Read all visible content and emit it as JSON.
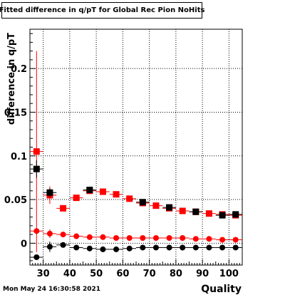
{
  "timestamp": "Mon May 24 16:30:58 2021",
  "chart_data": {
    "type": "scatter",
    "title": "Fitted difference in q/pT for Global Rec Pion NoHits",
    "xlabel": "Quality",
    "ylabel": "difference in q/pT",
    "xlim": [
      25,
      105
    ],
    "ylim": [
      -0.025,
      0.245
    ],
    "x_ticks": [
      30,
      40,
      50,
      60,
      70,
      80,
      90,
      100
    ],
    "x_tick_labels": [
      "30",
      "40",
      "50",
      "60",
      "70",
      "80",
      "90",
      "100"
    ],
    "y_ticks": [
      0,
      0.05,
      0.1,
      0.15,
      0.2
    ],
    "y_tick_labels": [
      "0",
      "0.05",
      "0.1",
      "0.15",
      "0.2"
    ],
    "grid": true,
    "x_bins": [
      27.5,
      32.5,
      37.5,
      42.5,
      47.5,
      52.5,
      57.5,
      62.5,
      67.5,
      72.5,
      77.5,
      82.5,
      87.5,
      92.5,
      97.5,
      102.5
    ],
    "x_halfwidth": 2.5,
    "series": [
      {
        "marker": "square",
        "color": "#ff0000",
        "values": [
          0.105,
          0.055,
          0.04,
          0.052,
          0.06,
          0.059,
          0.056,
          0.051,
          0.046,
          0.043,
          0.04,
          0.037,
          0.036,
          0.034,
          0.033,
          0.032
        ],
        "errors": [
          0.115,
          0.01,
          0.002,
          0.002,
          0.002,
          0.002,
          0.002,
          0.002,
          0.002,
          0.002,
          0.002,
          0.002,
          0.002,
          0.002,
          0.002,
          0.002
        ]
      },
      {
        "marker": "square",
        "color": "#000000",
        "values": [
          0.085,
          0.058,
          null,
          null,
          0.061,
          null,
          null,
          null,
          0.047,
          null,
          0.041,
          null,
          0.036,
          null,
          0.032,
          0.033
        ],
        "errors": [
          0.01,
          0.005,
          0,
          0,
          0.002,
          0,
          0,
          0,
          0.002,
          0,
          0.002,
          0,
          0.002,
          0,
          0.002,
          0.002
        ]
      },
      {
        "marker": "circle",
        "color": "#ff0000",
        "values": [
          0.014,
          0.011,
          0.01,
          0.008,
          0.007,
          0.007,
          0.006,
          0.006,
          0.006,
          0.006,
          0.006,
          0.006,
          0.005,
          0.005,
          0.004,
          0.004
        ],
        "errors": [
          0.003,
          0.005,
          0.001,
          0.001,
          0.001,
          0.001,
          0.001,
          0.001,
          0.001,
          0.001,
          0.001,
          0.001,
          0.001,
          0.001,
          0.001,
          0.001
        ]
      },
      {
        "marker": "circle",
        "color": "#000000",
        "values": [
          -0.016,
          -0.004,
          -0.002,
          -0.005,
          -0.006,
          -0.007,
          -0.007,
          -0.006,
          -0.005,
          -0.005,
          -0.005,
          -0.005,
          -0.005,
          -0.005,
          -0.005,
          -0.005
        ],
        "errors": [
          0.003,
          0.006,
          0.001,
          0.001,
          0.001,
          0.001,
          0.001,
          0.001,
          0.001,
          0.001,
          0.001,
          0.001,
          0.001,
          0.001,
          0.001,
          0.001
        ]
      }
    ]
  }
}
